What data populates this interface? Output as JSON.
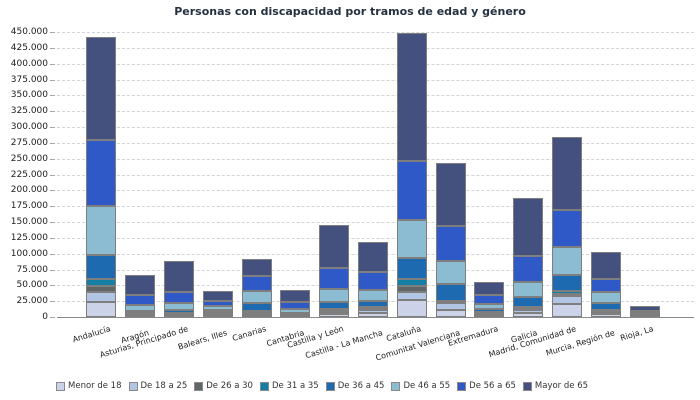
{
  "chart_data": {
    "type": "bar",
    "stacked": true,
    "title": "Personas con discapacidad por tramos de edad y género",
    "xlabel": "",
    "ylabel": "",
    "ylim": [
      0,
      450000
    ],
    "ytick_step": 25000,
    "grid": "horizontal-dashed",
    "legend_position": "bottom",
    "number_format": "dot-thousands",
    "categories": [
      "Andalucía",
      "Aragón",
      "Asturias, Principado de",
      "Balears, Illes",
      "Canarias",
      "Cantabria",
      "Castilla y León",
      "Castilla - La Mancha",
      "Cataluña",
      "Comunitat Valenciana",
      "Extremadura",
      "Galicia",
      "Madrid, Comunidad de",
      "Murcia, Región de",
      "Rioja, La"
    ],
    "series": [
      {
        "name": "Menor de 18",
        "color": "#ccd3e8",
        "values": [
          23900,
          2000,
          2200,
          3200,
          3700,
          1800,
          4500,
          6600,
          27500,
          10500,
          3800,
          6000,
          20100,
          4500,
          1500
        ]
      },
      {
        "name": "De 18 a 25",
        "color": "#b3c5e5",
        "values": [
          15900,
          1800,
          1800,
          2400,
          2700,
          1300,
          3500,
          4600,
          12700,
          11500,
          2700,
          4600,
          12300,
          3500,
          1000
        ]
      },
      {
        "name": "De 26 a 30",
        "color": "#606568",
        "values": [
          8900,
          1000,
          1100,
          1100,
          1600,
          600,
          2100,
          1800,
          8400,
          1500,
          900,
          2100,
          3200,
          1600,
          500
        ]
      },
      {
        "name": "De 31 a 35",
        "color": "#137fa5",
        "values": [
          10700,
          1200,
          1300,
          1300,
          2000,
          700,
          2700,
          2200,
          10700,
          2500,
          1100,
          2600,
          5300,
          2000,
          600
        ]
      },
      {
        "name": "De 36 a 45",
        "color": "#1d6ab0",
        "values": [
          38200,
          4000,
          4100,
          3700,
          12300,
          2200,
          11100,
          10700,
          34500,
          25500,
          4300,
          15900,
          25000,
          10700,
          1800
        ]
      },
      {
        "name": "De 46 a 55",
        "color": "#8cbcd2",
        "values": [
          76900,
          8800,
          12300,
          5300,
          18500,
          5300,
          20700,
          17500,
          59400,
          37100,
          8400,
          23900,
          44100,
          16900,
          2200
        ]
      },
      {
        "name": "De 56 a 65",
        "color": "#2e59c6",
        "values": [
          105100,
          16700,
          16600,
          8000,
          23900,
          11100,
          33400,
          28200,
          93400,
          54800,
          14300,
          41400,
          58300,
          21300,
          2500
        ]
      },
      {
        "name": "Mayor de 65",
        "color": "#44517e",
        "values": [
          161900,
          30700,
          48700,
          15900,
          26600,
          18900,
          67800,
          47100,
          202600,
          99200,
          19100,
          91400,
          115700,
          42300,
          6500
        ]
      }
    ]
  }
}
